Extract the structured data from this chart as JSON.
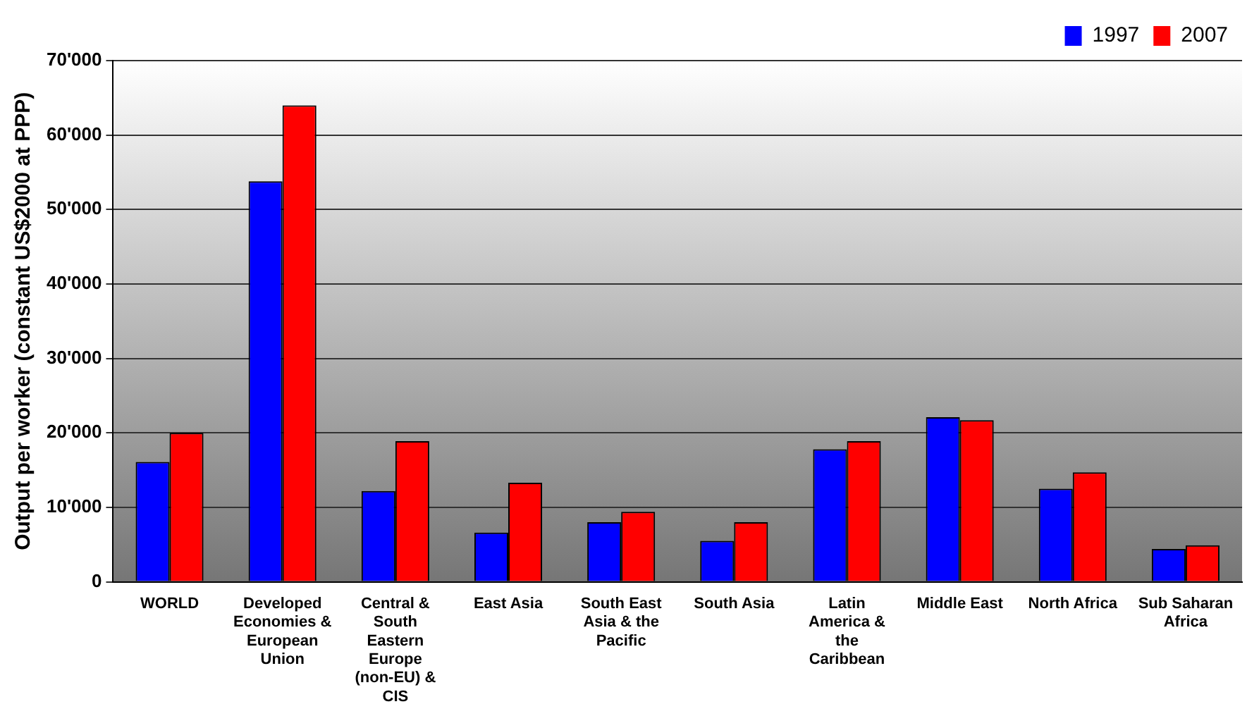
{
  "chart_data": {
    "type": "bar",
    "ylabel": "Output per worker (constant US$2000 at PPP)",
    "categories": [
      "WORLD",
      "Developed Economies & European Union",
      "Central & South Eastern Europe (non-EU) & CIS",
      "East Asia",
      "South East Asia & the Pacific",
      "South Asia",
      "Latin America & the Caribbean",
      "Middle East",
      "North Africa",
      "Sub Saharan Africa"
    ],
    "series": [
      {
        "name": "1997",
        "color": "#0000ff",
        "values": [
          16100,
          53800,
          12200,
          6600,
          8000,
          5500,
          17800,
          22100,
          12500,
          4400
        ]
      },
      {
        "name": "2007",
        "color": "#ff0000",
        "values": [
          20000,
          64000,
          18900,
          13300,
          9400,
          8000,
          18900,
          21700,
          14700,
          4900
        ]
      }
    ],
    "ylim": [
      0,
      70000
    ],
    "yticks": [
      {
        "value": 0,
        "label": "0"
      },
      {
        "value": 10000,
        "label": "10'000"
      },
      {
        "value": 20000,
        "label": "20'000"
      },
      {
        "value": 30000,
        "label": "30'000"
      },
      {
        "value": 40000,
        "label": "40'000"
      },
      {
        "value": 50000,
        "label": "50'000"
      },
      {
        "value": 60000,
        "label": "60'000"
      },
      {
        "value": 70000,
        "label": "70'000"
      }
    ],
    "grid": "y",
    "legend": "top right"
  }
}
